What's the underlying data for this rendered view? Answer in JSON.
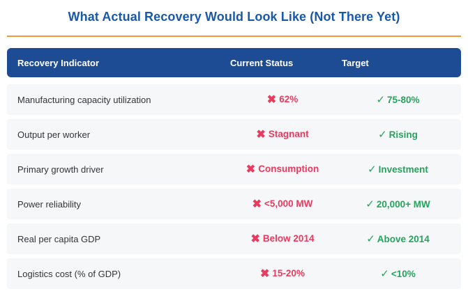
{
  "title": "What Actual Recovery Would Look Like (Not There Yet)",
  "icons": {
    "cross": "✖",
    "check": "✓"
  },
  "colors": {
    "title_text": "#1a58a8",
    "accent_line": "#ee9a3d",
    "header_bg": "#1e4c94",
    "header_text": "#ffffff",
    "row_bg": "#f6f7f9",
    "negative": "#ea3a5e",
    "positive": "#23a45c"
  },
  "table": {
    "headers": [
      "Recovery Indicator",
      "Current Status",
      "Target"
    ],
    "rows": [
      {
        "indicator": "Manufacturing capacity utilization",
        "current": "62%",
        "target": "75-80%"
      },
      {
        "indicator": "Output per worker",
        "current": "Stagnant",
        "target": "Rising"
      },
      {
        "indicator": "Primary growth driver",
        "current": "Consumption",
        "target": "Investment"
      },
      {
        "indicator": "Power reliability",
        "current": "<5,000 MW",
        "target": "20,000+ MW"
      },
      {
        "indicator": "Real per capita GDP",
        "current": "Below 2014",
        "target": "Above 2014"
      },
      {
        "indicator": "Logistics cost (% of GDP)",
        "current": "15-20%",
        "target": "<10%"
      }
    ]
  },
  "chart_data": {
    "type": "table",
    "title": "What Actual Recovery Would Look Like (Not There Yet)",
    "columns": [
      "Recovery Indicator",
      "Current Status",
      "Target"
    ],
    "rows": [
      [
        "Manufacturing capacity utilization",
        "✖ 62%",
        "✓ 75-80%"
      ],
      [
        "Output per worker",
        "✖ Stagnant",
        "✓ Rising"
      ],
      [
        "Primary growth driver",
        "✖ Consumption",
        "✓ Investment"
      ],
      [
        "Power reliability",
        "✖ <5,000 MW",
        "✓ 20,000+ MW"
      ],
      [
        "Real per capita GDP",
        "✖ Below 2014",
        "✓ Above 2014"
      ],
      [
        "Logistics cost (% of GDP)",
        "✖ 15-20%",
        "✓ <10%"
      ]
    ],
    "layout": "status column marked negative (red cross), target column marked positive (green check)"
  }
}
